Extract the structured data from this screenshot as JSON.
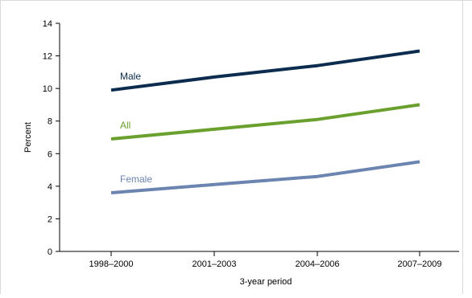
{
  "chart_data": {
    "type": "line",
    "title": "",
    "xlabel": "3-year period",
    "ylabel": "Percent",
    "categories": [
      "1998–2000",
      "2001–2003",
      "2004–2006",
      "2007–2009"
    ],
    "ylim": [
      0,
      14
    ],
    "yticks": [
      0,
      2,
      4,
      6,
      8,
      10,
      12,
      14
    ],
    "grid": false,
    "legend": "inline labels",
    "series": [
      {
        "name": "Male",
        "values": [
          9.9,
          10.7,
          11.4,
          12.3
        ],
        "color": "#0b2b4f"
      },
      {
        "name": "All",
        "values": [
          6.9,
          7.5,
          8.1,
          9.0
        ],
        "color": "#6aa02e"
      },
      {
        "name": "Female",
        "values": [
          3.6,
          4.1,
          4.6,
          5.5
        ],
        "color": "#6b84b0"
      }
    ]
  }
}
